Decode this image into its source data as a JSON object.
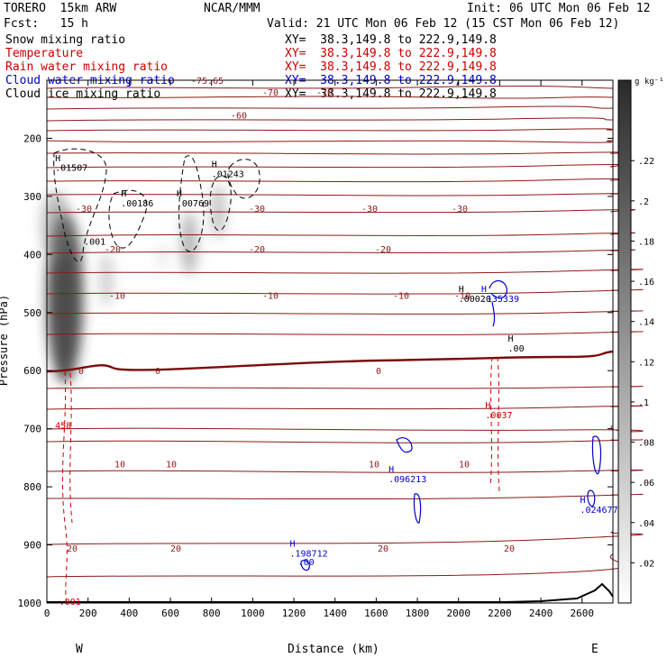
{
  "header": {
    "model": "TORERO  15km ARW",
    "center": "NCAR/MMM",
    "init": "Init: 06 UTC Mon 06 Feb 12",
    "fcst": "Fcst:   15 h",
    "valid": "Valid: 21 UTC Mon 06 Feb 12 (15 CST Mon 06 Feb 12)",
    "fields": [
      {
        "name": "Snow mixing ratio",
        "xy": "XY=  38.3,149.8 to 222.9,149.8",
        "color": "#000000"
      },
      {
        "name": "Temperature",
        "xy": "XY=  38.3,149.8 to 222.9,149.8",
        "color": "#cc0000"
      },
      {
        "name": "Rain water mixing ratio",
        "xy": "XY=  38.3,149.8 to 222.9,149.8",
        "color": "#cc0000"
      },
      {
        "name": "Cloud water mixing ratio",
        "xy": "XY=  38.3,149.8 to 222.9,149.8",
        "color": "#0000cc"
      },
      {
        "name": "Cloud ice mixing ratio",
        "xy": "XY=  38.3,149.8 to 222.9,149.8",
        "color": "#000000"
      }
    ]
  },
  "chart_data": {
    "type": "cross-section",
    "xlabel": "Distance (km)",
    "ylabel": "Pressure (hPa)",
    "xlim": [
      0,
      2750
    ],
    "ylim": [
      1000,
      100
    ],
    "x_ticks": [
      0,
      200,
      400,
      600,
      800,
      1000,
      1200,
      1400,
      1600,
      1800,
      2000,
      2200,
      2400,
      2600
    ],
    "y_ticks": [
      200,
      300,
      400,
      500,
      600,
      700,
      800,
      900,
      1000
    ],
    "left_end": "W",
    "right_end": "E",
    "colorbar": {
      "unit": "g kg⁻¹",
      "ticks": [
        0.02,
        0.04,
        0.06,
        0.08,
        0.1,
        0.12,
        0.14,
        0.16,
        0.18,
        0.2,
        0.22
      ],
      "tick_labels": [
        ".02",
        ".04",
        ".06",
        ".08",
        ".1",
        ".12",
        ".14",
        ".16",
        ".18",
        ".2",
        ".22"
      ],
      "range": [
        0,
        0.26
      ]
    },
    "isotherms": [
      {
        "label": "-75.65",
        "p": 100
      },
      {
        "label": "-70",
        "p": 120
      },
      {
        "label": "-60",
        "p": 160
      },
      {
        "label": "-30",
        "p": 320
      },
      {
        "label": "-20",
        "p": 390
      },
      {
        "label": "-10",
        "p": 470
      },
      {
        "label": "0",
        "p": 600
      },
      {
        "label": "10",
        "p": 760
      },
      {
        "label": "20",
        "p": 905
      }
    ],
    "annotations": [
      {
        "text": "H",
        "x": 40,
        "p": 240,
        "color": "#000000"
      },
      {
        "text": ".01507",
        "x": 40,
        "p": 256,
        "color": "#000000"
      },
      {
        "text": "H",
        "x": 360,
        "p": 300,
        "color": "#000000"
      },
      {
        "text": ".00186",
        "x": 360,
        "p": 317,
        "color": "#000000"
      },
      {
        "text": "H",
        "x": 630,
        "p": 300,
        "color": "#000000"
      },
      {
        "text": ".00769",
        "x": 630,
        "p": 317,
        "color": "#000000"
      },
      {
        "text": "H",
        "x": 800,
        "p": 250,
        "color": "#000000"
      },
      {
        "text": ".01243",
        "x": 800,
        "p": 267,
        "color": "#000000"
      },
      {
        "text": ".001",
        "x": 180,
        "p": 383,
        "color": "#000000"
      },
      {
        "text": "H",
        "x": 2000,
        "p": 465,
        "color": "#000000"
      },
      {
        "text": ".00020",
        "x": 2000,
        "p": 482,
        "color": "#000000"
      },
      {
        "text": "H",
        "x": 2110,
        "p": 465,
        "color": "#0000cc"
      },
      {
        "text": ".135339",
        "x": 2110,
        "p": 482,
        "color": "#0000cc"
      },
      {
        "text": "H",
        "x": 2240,
        "p": 550,
        "color": "#000000"
      },
      {
        "text": ".00",
        "x": 2240,
        "p": 567,
        "color": "#000000"
      },
      {
        "text": "H",
        "x": 2130,
        "p": 665,
        "color": "#cc0000"
      },
      {
        "text": ".0037",
        "x": 2130,
        "p": 682,
        "color": "#cc0000"
      },
      {
        "text": "458",
        "x": 40,
        "p": 700,
        "color": "#cc0000"
      },
      {
        "text": "H",
        "x": 1660,
        "p": 775,
        "color": "#0000cc"
      },
      {
        "text": ".096213",
        "x": 1660,
        "p": 792,
        "color": "#0000cc"
      },
      {
        "text": "H",
        "x": 2590,
        "p": 828,
        "color": "#0000cc"
      },
      {
        "text": ".024677",
        "x": 2590,
        "p": 845,
        "color": "#0000cc"
      },
      {
        "text": "H",
        "x": 1180,
        "p": 903,
        "color": "#0000cc"
      },
      {
        "text": ".198712",
        "x": 1180,
        "p": 920,
        "color": "#0000cc"
      },
      {
        "text": ".00",
        "x": 1220,
        "p": 935,
        "color": "#0000cc"
      },
      {
        "text": ".001",
        "x": 60,
        "p": 1003,
        "color": "#cc0000"
      }
    ]
  }
}
